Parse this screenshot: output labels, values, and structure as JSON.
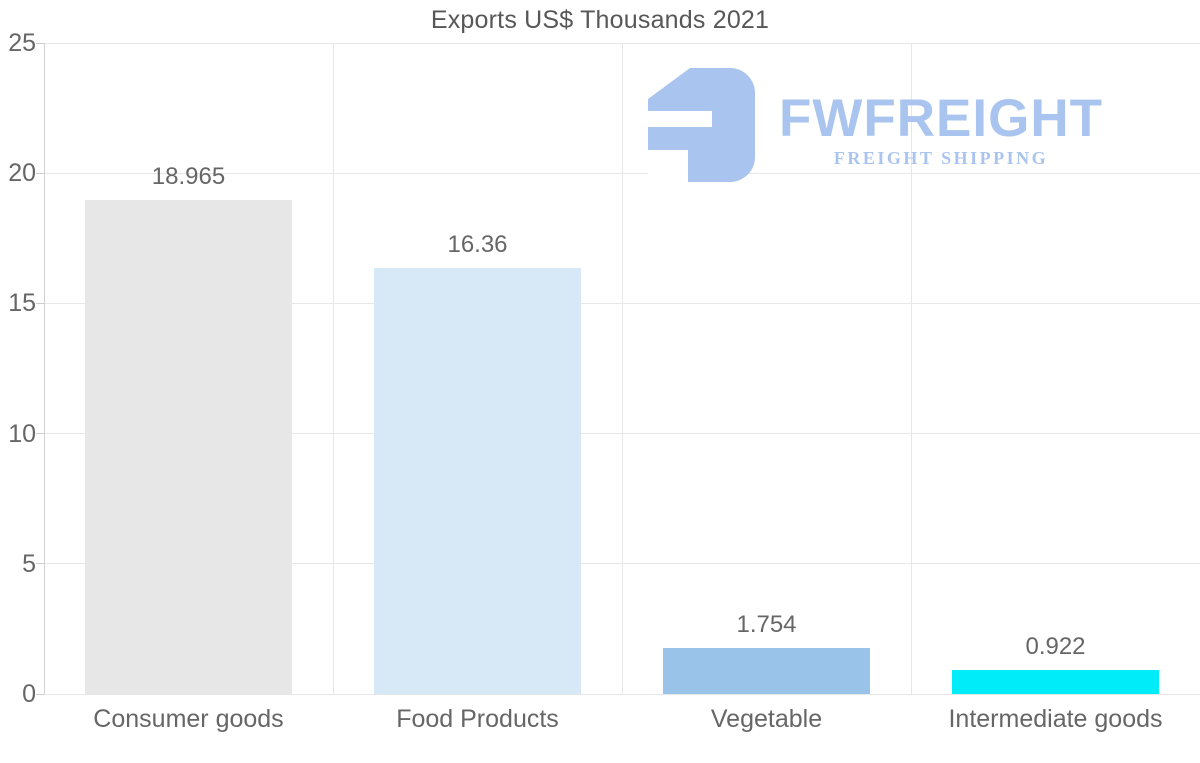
{
  "page": {
    "background": "#ffffff"
  },
  "chart_data": {
    "type": "bar",
    "title": "Exports US$ Thousands 2021",
    "categories": [
      "Consumer goods",
      "Food Products",
      "Vegetable",
      "Intermediate goods"
    ],
    "values": [
      18.965,
      16.36,
      1.754,
      0.922
    ],
    "value_labels": [
      "18.965",
      "16.36",
      "1.754",
      "0.922"
    ],
    "bar_colors": [
      "#e7e7e7",
      "#d7e8f7",
      "#99c3e8",
      "#00ecf8"
    ],
    "ylim": [
      0,
      25
    ],
    "yticks": [
      0,
      5,
      10,
      15,
      20,
      25
    ],
    "grid": true,
    "legend_position": "none",
    "xlabel": "",
    "ylabel": ""
  },
  "colors": {
    "title_text": "#575757",
    "axis_text": "#666666",
    "value_label_text": "#666666",
    "gridline": "#e7e7e7",
    "axis_line": "#d2d2d2",
    "tick_mark": "#cccccc"
  },
  "logo": {
    "wordmark": "FWFREIGHT",
    "tagline": "FREIGHT SHIPPING",
    "color": "#a9c4ef"
  }
}
